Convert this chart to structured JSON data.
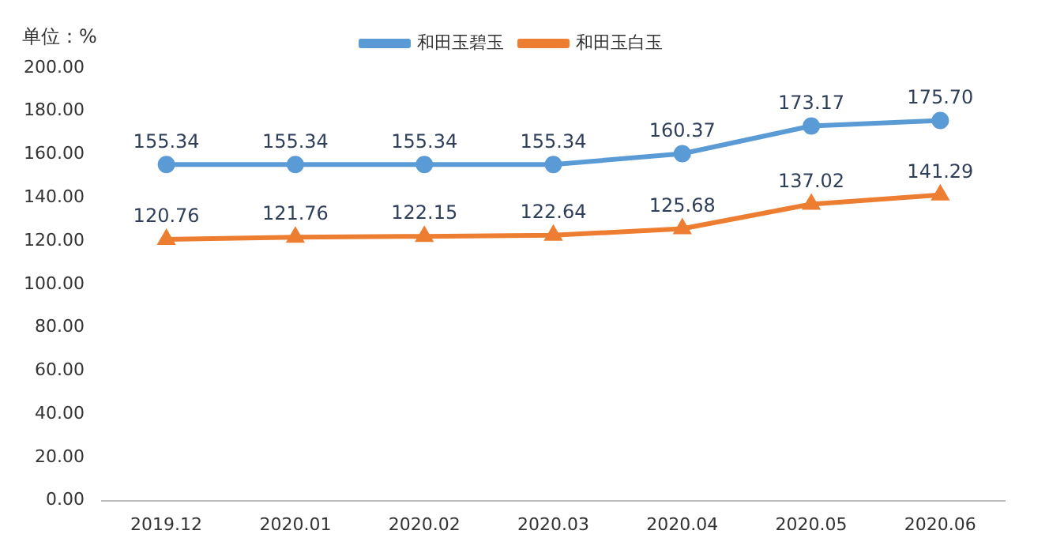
{
  "chart_data": {
    "type": "line",
    "ylabel": "单位：%",
    "categories": [
      "2019.12",
      "2020.01",
      "2020.02",
      "2020.03",
      "2020.04",
      "2020.05",
      "2020.06"
    ],
    "series": [
      {
        "name": "和田玉碧玉",
        "color": "#5b9bd5",
        "marker": "circle",
        "values": [
          155.34,
          155.34,
          155.34,
          155.34,
          160.37,
          173.17,
          175.7
        ],
        "value_labels": [
          "155.34",
          "155.34",
          "155.34",
          "155.34",
          "160.37",
          "173.17",
          "175.70"
        ]
      },
      {
        "name": "和田玉白玉",
        "color": "#ed7d31",
        "marker": "triangle",
        "values": [
          120.76,
          121.76,
          122.15,
          122.64,
          125.68,
          137.02,
          141.29
        ],
        "value_labels": [
          "120.76",
          "121.76",
          "122.15",
          "122.64",
          "125.68",
          "137.02",
          "141.29"
        ]
      }
    ],
    "ylim": [
      0,
      200
    ],
    "yticks": [
      {
        "value": 0,
        "label": "0.00"
      },
      {
        "value": 20,
        "label": "20.00"
      },
      {
        "value": 40,
        "label": "40.00"
      },
      {
        "value": 60,
        "label": "60.00"
      },
      {
        "value": 80,
        "label": "80.00"
      },
      {
        "value": 100,
        "label": "100.00"
      },
      {
        "value": 120,
        "label": "120.00"
      },
      {
        "value": 140,
        "label": "140.00"
      },
      {
        "value": 160,
        "label": "160.00"
      },
      {
        "value": 180,
        "label": "180.00"
      },
      {
        "value": 200,
        "label": "200.00"
      }
    ],
    "grid": false,
    "legend": "top"
  }
}
